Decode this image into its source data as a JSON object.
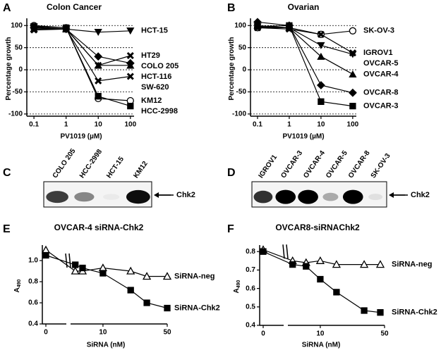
{
  "chart_data": [
    {
      "type": "line",
      "panel": "A",
      "title": "Colon Cancer",
      "xlabel": "PV1019 (µM)",
      "ylabel": "Percentage growth",
      "xscale": "log",
      "x": [
        0.1,
        1,
        10,
        100
      ],
      "xlim": [
        0.06,
        130
      ],
      "xticks": [
        0.1,
        1,
        10,
        100
      ],
      "ylim": [
        -105,
        110
      ],
      "yticks": [
        -100,
        -50,
        0,
        50,
        100
      ],
      "grid": "dashed",
      "series": [
        {
          "name": "HCT-15",
          "marker": "triangle-down",
          "color": "#000000",
          "values": [
            97,
            92,
            85,
            88
          ]
        },
        {
          "name": "COLO 205",
          "marker": "diamond",
          "color": "#000000",
          "values": [
            95,
            92,
            30,
            15
          ]
        },
        {
          "name": "HT29",
          "marker": "x",
          "color": "#000000",
          "values": [
            92,
            93,
            10,
            32
          ]
        },
        {
          "name": "HCT-116",
          "marker": "triangle-up",
          "color": "#000000",
          "values": [
            93,
            92,
            10,
            10
          ]
        },
        {
          "name": "SW-620",
          "marker": "x",
          "color": "#000000",
          "values": [
            90,
            92,
            -25,
            -15
          ]
        },
        {
          "name": "KM12",
          "marker": "circle-open",
          "color": "#000000",
          "values": [
            100,
            95,
            -65,
            -70
          ]
        },
        {
          "name": "HCC-2998",
          "marker": "square",
          "color": "#000000",
          "values": [
            98,
            95,
            -60,
            -82
          ]
        }
      ]
    },
    {
      "type": "line",
      "panel": "B",
      "title": "Ovarian",
      "xlabel": "PV1019 (µM)",
      "ylabel": "Percentage growth",
      "xscale": "log",
      "x": [
        0.1,
        1,
        10,
        100
      ],
      "xlim": [
        0.06,
        130
      ],
      "xticks": [
        0.1,
        1,
        10,
        100
      ],
      "ylim": [
        -105,
        110
      ],
      "yticks": [
        -100,
        -50,
        0,
        50,
        100
      ],
      "grid": "dashed",
      "series": [
        {
          "name": "SK-OV-3",
          "marker": "circle-open",
          "color": "#000000",
          "values": [
            95,
            95,
            80,
            88
          ]
        },
        {
          "name": "IGROV1",
          "marker": "x",
          "color": "#000000",
          "values": [
            95,
            92,
            80,
            38
          ]
        },
        {
          "name": "OVCAR-5",
          "marker": "triangle-down",
          "color": "#000000",
          "values": [
            97,
            95,
            55,
            35
          ]
        },
        {
          "name": "OVCAR-4",
          "marker": "triangle-up",
          "color": "#000000",
          "values": [
            100,
            95,
            30,
            -10
          ]
        },
        {
          "name": "OVCAR-8",
          "marker": "diamond",
          "color": "#000000",
          "values": [
            108,
            100,
            -35,
            -52
          ]
        },
        {
          "name": "OVCAR-3",
          "marker": "square",
          "color": "#000000",
          "values": [
            98,
            100,
            -72,
            -82
          ]
        }
      ]
    },
    {
      "type": "line",
      "panel": "E",
      "title": "OVCAR-4 siRNA-Chk2",
      "xlabel": "SiRNA (nM)",
      "ylabel": "A",
      "ylabel_sub": "490",
      "xscale": "log",
      "x_break": true,
      "x": [
        0,
        5,
        6,
        10,
        20,
        30,
        50
      ],
      "xlim": [
        4.6,
        50
      ],
      "xticks": [
        0,
        10,
        50
      ],
      "ylim": [
        0.4,
        1.12
      ],
      "yticks": [
        0.4,
        0.6,
        0.8,
        {
          "value": 1,
          "label": "1.0"
        }
      ],
      "grid": false,
      "series": [
        {
          "name": "SiRNA-neg",
          "marker": "triangle-open",
          "color": "#000000",
          "values": [
            1.1,
            0.9,
            0.9,
            0.93,
            0.9,
            0.85,
            0.85
          ]
        },
        {
          "name": "SiRNA-Chk2",
          "marker": "square",
          "color": "#000000",
          "values": [
            1.05,
            0.96,
            0.93,
            0.88,
            0.72,
            0.6,
            0.55
          ]
        }
      ]
    },
    {
      "type": "line",
      "panel": "F",
      "title": "OVCAR8-siRNAChk2",
      "xlabel": "SiRNA (nM)",
      "ylabel": "A",
      "ylabel_sub": "490",
      "xscale": "log",
      "x_break": true,
      "x": [
        0,
        5,
        7,
        10,
        15,
        30,
        45
      ],
      "xlim": [
        4.6,
        50
      ],
      "xticks": [
        0,
        10,
        50
      ],
      "ylim": [
        0.4,
        0.82
      ],
      "yticks": [
        0.4,
        0.5,
        0.6,
        0.7,
        0.8
      ],
      "grid": false,
      "series": [
        {
          "name": "SiRNA-neg",
          "marker": "triangle-open",
          "color": "#000000",
          "values": [
            0.81,
            0.75,
            0.74,
            0.75,
            0.73,
            0.73,
            0.73
          ]
        },
        {
          "name": "SiRNA-Chk2",
          "marker": "square",
          "color": "#000000",
          "values": [
            0.8,
            0.73,
            0.72,
            0.65,
            0.58,
            0.48,
            0.47
          ]
        }
      ]
    }
  ],
  "blots": [
    {
      "panel": "C",
      "lanes": [
        "COLO 205",
        "HCC-2998",
        "HCT-15",
        "KM12"
      ],
      "protein": "Chk2"
    },
    {
      "panel": "D",
      "lanes": [
        "IGROV1",
        "OVCAR-3",
        "OVCAR-4",
        "OVCAR-5",
        "OVCAR-8",
        "SK-OV-3"
      ],
      "protein": "Chk2"
    }
  ]
}
